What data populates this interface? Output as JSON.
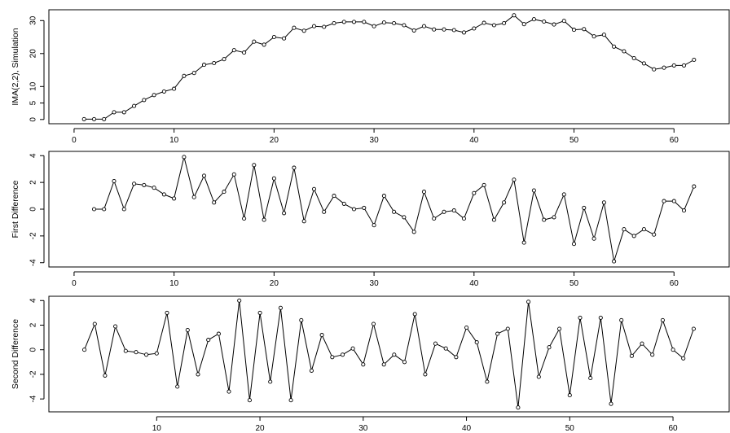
{
  "chart_data": [
    {
      "type": "line",
      "ylabel": "IMA(2,2), Simulation",
      "xlim": [
        0,
        63
      ],
      "ylim": [
        0,
        32
      ],
      "xticks": [
        0,
        10,
        20,
        30,
        40,
        50,
        60
      ],
      "yticks": [
        0,
        5,
        10,
        20,
        30
      ],
      "x": [
        1,
        2,
        3,
        4,
        5,
        6,
        7,
        8,
        9,
        10,
        11,
        12,
        13,
        14,
        15,
        16,
        17,
        18,
        19,
        20,
        21,
        22,
        23,
        24,
        25,
        26,
        27,
        28,
        29,
        30,
        31,
        32,
        33,
        34,
        35,
        36,
        37,
        38,
        39,
        40,
        41,
        42,
        43,
        44,
        45,
        46,
        47,
        48,
        49,
        50,
        51,
        52,
        53,
        54,
        55,
        56,
        57,
        58,
        59,
        60,
        61,
        62
      ],
      "values": [
        0.1,
        0.1,
        0.1,
        2.2,
        2.2,
        4.1,
        5.9,
        7.4,
        8.5,
        9.3,
        13.2,
        14.1,
        16.6,
        17.1,
        18.3,
        21.0,
        20.3,
        23.6,
        22.7,
        25.0,
        24.6,
        27.8,
        26.9,
        28.3,
        28.1,
        29.2,
        29.6,
        29.6,
        29.6,
        28.3,
        29.4,
        29.2,
        28.6,
        27.0,
        28.3,
        27.3,
        27.3,
        27.1,
        26.4,
        27.6,
        29.3,
        28.6,
        29.2,
        31.6,
        28.9,
        30.4,
        29.7,
        28.8,
        29.9,
        27.2,
        27.4,
        25.2,
        25.7,
        22.1,
        20.7,
        18.6,
        17.0,
        15.2,
        15.7,
        16.4,
        16.4,
        18.1
      ]
    },
    {
      "type": "line",
      "ylabel": "First Difference",
      "xlim": [
        0,
        63
      ],
      "ylim": [
        -4,
        4
      ],
      "xticks": [
        0,
        10,
        20,
        30,
        40,
        50,
        60
      ],
      "yticks": [
        -4,
        -2,
        0,
        2,
        4
      ],
      "x": [
        2,
        3,
        4,
        5,
        6,
        7,
        8,
        9,
        10,
        11,
        12,
        13,
        14,
        15,
        16,
        17,
        18,
        19,
        20,
        21,
        22,
        23,
        24,
        25,
        26,
        27,
        28,
        29,
        30,
        31,
        32,
        33,
        34,
        35,
        36,
        37,
        38,
        39,
        40,
        41,
        42,
        43,
        44,
        45,
        46,
        47,
        48,
        49,
        50,
        51,
        52,
        53,
        54,
        55,
        56,
        57,
        58,
        59,
        60,
        61,
        62
      ],
      "values": [
        0.0,
        0.0,
        2.1,
        0.0,
        1.9,
        1.8,
        1.6,
        1.1,
        0.8,
        3.9,
        0.9,
        2.5,
        0.5,
        1.3,
        2.6,
        -0.7,
        3.3,
        -0.8,
        2.3,
        -0.3,
        3.1,
        -0.9,
        1.5,
        -0.2,
        1.0,
        0.4,
        0.0,
        0.1,
        -1.2,
        1.0,
        -0.2,
        -0.6,
        -1.7,
        1.3,
        -0.7,
        -0.2,
        -0.1,
        -0.7,
        1.2,
        1.8,
        -0.8,
        0.5,
        2.2,
        -2.5,
        1.4,
        -0.8,
        -0.6,
        1.1,
        -2.6,
        0.1,
        -2.2,
        0.5,
        -3.9,
        -1.5,
        -2.0,
        -1.5,
        -1.9,
        0.6,
        0.6,
        -0.1,
        1.7
      ]
    },
    {
      "type": "line",
      "ylabel": "Second Difference",
      "xlim": [
        2,
        63
      ],
      "ylim": [
        -4.7,
        4
      ],
      "xticks": [
        10,
        20,
        30,
        40,
        50,
        60
      ],
      "yticks": [
        -4,
        -2,
        0,
        2,
        4
      ],
      "x": [
        3,
        4,
        5,
        6,
        7,
        8,
        9,
        10,
        11,
        12,
        13,
        14,
        15,
        16,
        17,
        18,
        19,
        20,
        21,
        22,
        23,
        24,
        25,
        26,
        27,
        28,
        29,
        30,
        31,
        32,
        33,
        34,
        35,
        36,
        37,
        38,
        39,
        40,
        41,
        42,
        43,
        44,
        45,
        46,
        47,
        48,
        49,
        50,
        51,
        52,
        53,
        54,
        55,
        56,
        57,
        58,
        59,
        60,
        61,
        62
      ],
      "values": [
        0.0,
        2.1,
        -2.1,
        1.9,
        -0.1,
        -0.2,
        -0.4,
        -0.3,
        3.0,
        -3.0,
        1.6,
        -2.0,
        0.8,
        1.3,
        -3.4,
        4.0,
        -4.1,
        3.0,
        -2.6,
        3.4,
        -4.1,
        2.4,
        -1.7,
        1.2,
        -0.6,
        -0.4,
        0.1,
        -1.2,
        2.1,
        -1.2,
        -0.4,
        -1.0,
        2.9,
        -2.0,
        0.5,
        0.1,
        -0.6,
        1.8,
        0.6,
        -2.6,
        1.3,
        1.7,
        -4.7,
        3.9,
        -2.2,
        0.2,
        1.7,
        -3.7,
        2.6,
        -2.3,
        2.6,
        -4.4,
        2.4,
        -0.5,
        0.5,
        -0.4,
        2.4,
        0.0,
        -0.7,
        1.7
      ]
    }
  ]
}
